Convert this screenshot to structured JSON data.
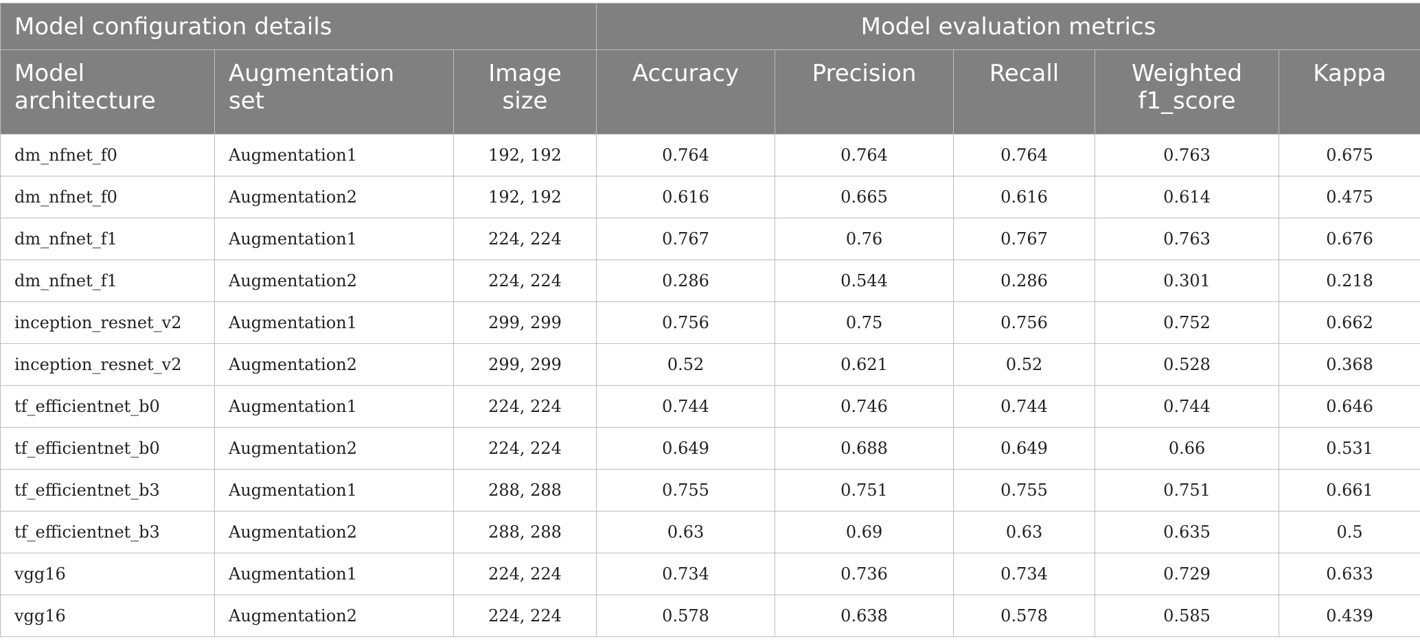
{
  "group_headers": {
    "config": "Model configuration details",
    "metrics": "Model evaluation metrics"
  },
  "columns": {
    "architecture": [
      "Model",
      "architecture"
    ],
    "augmentation": [
      "Augmentation",
      "set"
    ],
    "image_size": [
      "Image",
      "size"
    ],
    "accuracy": "Accuracy",
    "precision": "Precision",
    "recall": "Recall",
    "weighted_f1": [
      "Weighted",
      "f1_score"
    ],
    "kappa": "Kappa"
  },
  "rows": [
    [
      "dm_nfnet_f0",
      "Augmentation1",
      "192, 192",
      "0.764",
      "0.764",
      "0.764",
      "0.763",
      "0.675"
    ],
    [
      "dm_nfnet_f0",
      "Augmentation2",
      "192, 192",
      "0.616",
      "0.665",
      "0.616",
      "0.614",
      "0.475"
    ],
    [
      "dm_nfnet_f1",
      "Augmentation1",
      "224, 224",
      "0.767",
      "0.76",
      "0.767",
      "0.763",
      "0.676"
    ],
    [
      "dm_nfnet_f1",
      "Augmentation2",
      "224, 224",
      "0.286",
      "0.544",
      "0.286",
      "0.301",
      "0.218"
    ],
    [
      "inception_resnet_v2",
      "Augmentation1",
      "299, 299",
      "0.756",
      "0.75",
      "0.756",
      "0.752",
      "0.662"
    ],
    [
      "inception_resnet_v2",
      "Augmentation2",
      "299, 299",
      "0.52",
      "0.621",
      "0.52",
      "0.528",
      "0.368"
    ],
    [
      "tf_efficientnet_b0",
      "Augmentation1",
      "224, 224",
      "0.744",
      "0.746",
      "0.744",
      "0.744",
      "0.646"
    ],
    [
      "tf_efficientnet_b0",
      "Augmentation2",
      "224, 224",
      "0.649",
      "0.688",
      "0.649",
      "0.66",
      "0.531"
    ],
    [
      "tf_efficientnet_b3",
      "Augmentation1",
      "288, 288",
      "0.755",
      "0.751",
      "0.755",
      "0.751",
      "0.661"
    ],
    [
      "tf_efficientnet_b3",
      "Augmentation2",
      "288, 288",
      "0.63",
      "0.69",
      "0.63",
      "0.635",
      "0.5"
    ],
    [
      "vgg16",
      "Augmentation1",
      "224, 224",
      "0.734",
      "0.736",
      "0.734",
      "0.729",
      "0.633"
    ],
    [
      "vgg16",
      "Augmentation2",
      "224, 224",
      "0.578",
      "0.638",
      "0.578",
      "0.585",
      "0.439"
    ]
  ]
}
